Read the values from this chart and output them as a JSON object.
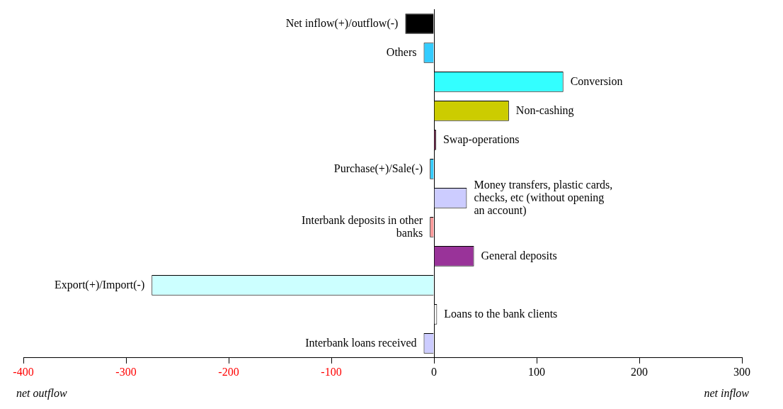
{
  "chart_data": {
    "type": "bar",
    "orientation": "horizontal",
    "categories": [
      "Net inflow(+)/outflow(-)",
      "Others",
      "Conversion",
      "Non-cashing",
      "Swap-operations",
      "Purchase(+)/Sale(-)",
      "Money transfers, plastic cards, checks, etc (without opening an account)",
      "Interbank deposits in other banks",
      "General deposits",
      "Export(+)/Import(-)",
      "Loans to the bank clients",
      "Interbank loans received"
    ],
    "values": [
      -28,
      -10,
      126,
      73,
      2,
      -4,
      32,
      -4,
      39,
      -275,
      3,
      -10
    ],
    "colors": [
      "#000000",
      "#33ccff",
      "#33ffff",
      "#cccc00",
      "#993366",
      "#33ccff",
      "#ccccff",
      "#ff9999",
      "#993399",
      "#ccffff",
      "#ffffff",
      "#ccccff"
    ],
    "xlim": [
      -400,
      300
    ],
    "xticks": [
      -400,
      -300,
      -200,
      -100,
      0,
      100,
      200,
      300
    ],
    "grid": false,
    "legend": false,
    "annotations": [
      "net outflow",
      "net inflow"
    ]
  }
}
